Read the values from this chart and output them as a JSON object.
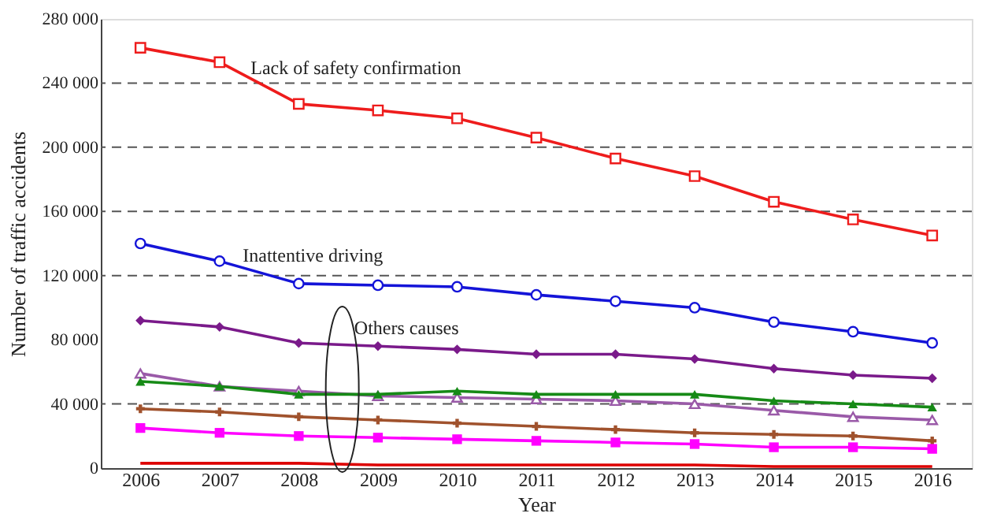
{
  "chart_data": {
    "type": "line",
    "xlabel": "Year",
    "ylabel": "Number of traffic accidents",
    "x": [
      2006,
      2007,
      2008,
      2009,
      2010,
      2011,
      2012,
      2013,
      2014,
      2015,
      2016
    ],
    "xlim": [
      2005.5,
      2016.5
    ],
    "xticks": [
      2006,
      2007,
      2008,
      2009,
      2010,
      2011,
      2012,
      2013,
      2014,
      2015,
      2016
    ],
    "ylim": [
      0,
      280000
    ],
    "yticks": [
      {
        "value": 0,
        "label": "0"
      },
      {
        "value": 40000,
        "label": "40 000"
      },
      {
        "value": 80000,
        "label": "80 000"
      },
      {
        "value": 120000,
        "label": "120 000"
      },
      {
        "value": 160000,
        "label": "160 000"
      },
      {
        "value": 200000,
        "label": "200 000"
      },
      {
        "value": 240000,
        "label": "240 000"
      },
      {
        "value": 280000,
        "label": "280 000"
      }
    ],
    "grid": false,
    "line_style": "solid",
    "series": [
      {
        "color": "#ee1c1c",
        "marker": "square_open",
        "values": [
          262000,
          253000,
          227000,
          223000,
          218000,
          206000,
          193000,
          182000,
          166000,
          155000,
          145000
        ]
      },
      {
        "color": "#1414d8",
        "marker": "circle_open",
        "values": [
          140000,
          129000,
          115000,
          114000,
          113000,
          108000,
          104000,
          100000,
          91000,
          85000,
          78000
        ]
      },
      {
        "color": "#7a1a8a",
        "marker": "diamond",
        "values": [
          92000,
          88000,
          78000,
          76000,
          74000,
          71000,
          71000,
          68000,
          62000,
          58000,
          56000
        ]
      },
      {
        "color": "#9a5aa8",
        "marker": "triangle_open",
        "values": [
          59000,
          51000,
          48000,
          45000,
          44000,
          43000,
          42000,
          40000,
          36000,
          32000,
          30000
        ]
      },
      {
        "color": "#168a16",
        "marker": "triangle",
        "values": [
          54000,
          51000,
          46000,
          46000,
          48000,
          46000,
          46000,
          46000,
          42000,
          40000,
          38000
        ]
      },
      {
        "color": "#a0522d",
        "marker": "cross",
        "values": [
          37000,
          35000,
          32000,
          30000,
          28000,
          26000,
          24000,
          22000,
          21000,
          20000,
          17000
        ]
      },
      {
        "color": "#ff00ff",
        "marker": "square",
        "values": [
          25000,
          22000,
          20000,
          19000,
          18000,
          17000,
          16000,
          15000,
          13000,
          13000,
          12000
        ]
      },
      {
        "color": "#dd0000",
        "marker": "none",
        "values": [
          3000,
          3000,
          3000,
          2000,
          2000,
          2000,
          2000,
          2000,
          1000,
          1000,
          1000
        ]
      }
    ],
    "ref_lines": [
      {
        "axis": "y",
        "value": 40000,
        "color": "#555555",
        "line_style": "dashed"
      },
      {
        "axis": "y",
        "value": 120000,
        "color": "#555555",
        "line_style": "dashed"
      },
      {
        "axis": "y",
        "value": 160000,
        "color": "#555555",
        "line_style": "dashed"
      },
      {
        "axis": "y",
        "value": 200000,
        "color": "#555555",
        "line_style": "dashed"
      },
      {
        "axis": "y",
        "value": 240000,
        "color": "#555555",
        "line_style": "dashed"
      }
    ],
    "annotations": [
      "Lack of safety confirmation",
      "Inattentive driving",
      "Others causes"
    ]
  }
}
